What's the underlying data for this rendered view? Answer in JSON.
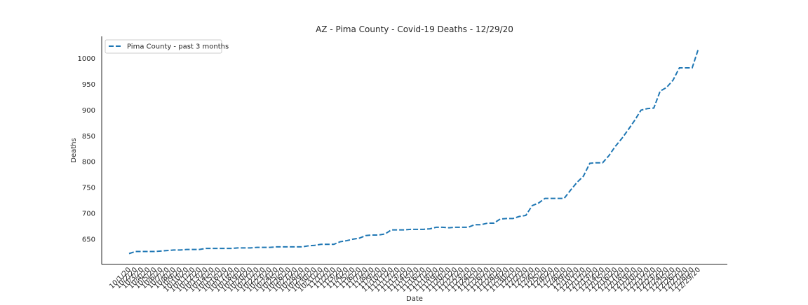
{
  "chart_data": {
    "type": "line",
    "title": "AZ - Pima County - Covid-19 Deaths - 12/29/20",
    "x_label": "Date",
    "y_label": "Deaths",
    "categories": [
      "10/1/20",
      "10/2/20",
      "10/3/20",
      "10/4/20",
      "10/5/20",
      "10/6/20",
      "10/7/20",
      "10/8/20",
      "10/9/20",
      "10/10/20",
      "10/11/20",
      "10/12/20",
      "10/13/20",
      "10/14/20",
      "10/15/20",
      "10/16/20",
      "10/17/20",
      "10/18/20",
      "10/19/20",
      "10/20/20",
      "10/21/20",
      "10/22/20",
      "10/23/20",
      "10/24/20",
      "10/25/20",
      "10/26/20",
      "10/27/20",
      "10/28/20",
      "10/29/20",
      "10/30/20",
      "10/31/20",
      "11/1/20",
      "11/2/20",
      "11/3/20",
      "11/4/20",
      "11/5/20",
      "11/6/20",
      "11/7/20",
      "11/8/20",
      "11/9/20",
      "11/10/20",
      "11/11/20",
      "11/12/20",
      "11/13/20",
      "11/14/20",
      "11/15/20",
      "11/16/20",
      "11/17/20",
      "11/18/20",
      "11/19/20",
      "11/20/20",
      "11/21/20",
      "11/22/20",
      "11/23/20",
      "11/24/20",
      "11/25/20",
      "11/26/20",
      "11/27/20",
      "11/28/20",
      "11/29/20",
      "11/30/20",
      "12/1/20",
      "12/2/20",
      "12/3/20",
      "12/4/20",
      "12/5/20",
      "12/6/20",
      "12/7/20",
      "12/8/20",
      "12/9/20",
      "12/10/20",
      "12/11/20",
      "12/12/20",
      "12/13/20",
      "12/14/20",
      "12/15/20",
      "12/16/20",
      "12/17/20",
      "12/18/20",
      "12/19/20",
      "12/20/20",
      "12/21/20",
      "12/22/20",
      "12/23/20",
      "12/24/20",
      "12/25/20",
      "12/26/20",
      "12/27/20",
      "12/28/20",
      "12/29/20"
    ],
    "series": [
      {
        "name": "Pima County - past 3 months",
        "color": "#1f77b4",
        "values": [
          622,
          626,
          626,
          626,
          626,
          627,
          628,
          629,
          629,
          630,
          630,
          630,
          632,
          632,
          632,
          632,
          632,
          633,
          633,
          633,
          634,
          634,
          634,
          635,
          635,
          635,
          635,
          635,
          637,
          638,
          640,
          640,
          640,
          645,
          647,
          650,
          652,
          657,
          658,
          658,
          660,
          668,
          668,
          668,
          669,
          669,
          669,
          670,
          673,
          673,
          672,
          673,
          673,
          673,
          678,
          678,
          681,
          681,
          689,
          690,
          690,
          694,
          696,
          715,
          720,
          729,
          729,
          729,
          729,
          745,
          760,
          772,
          797,
          798,
          798,
          812,
          830,
          845,
          862,
          880,
          900,
          903,
          904,
          937,
          944,
          958,
          982,
          982,
          982,
          1020
        ]
      }
    ],
    "ylim": [
      601,
      1043
    ],
    "yticks": [
      650,
      700,
      750,
      800,
      850,
      900,
      950,
      1000
    ],
    "legend": "upper left",
    "grid": false
  }
}
